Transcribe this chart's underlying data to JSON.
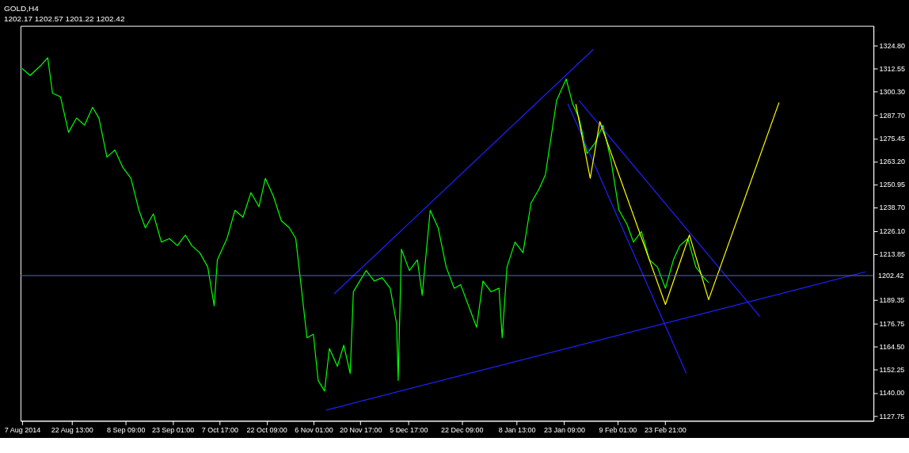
{
  "chart_data": {
    "type": "line",
    "title": "GOLD,H4",
    "subtitle": "1202.17 1202.57 1201.22 1202.42",
    "xlim": [
      "2014-08-06T12:00",
      "2015-04-30"
    ],
    "ylim": [
      1125.1,
      1335.4
    ],
    "xticks": [
      {
        "value": "2014-08-07",
        "label": "7 Aug 2014"
      },
      {
        "value": "2014-08-22T13:00",
        "label": "22 Aug 13:00"
      },
      {
        "value": "2014-09-08T09:00",
        "label": "8 Sep 09:00"
      },
      {
        "value": "2014-09-23T01:00",
        "label": "23 Sep 01:00"
      },
      {
        "value": "2014-10-07T17:00",
        "label": "7 Oct 17:00"
      },
      {
        "value": "2014-10-22T09:00",
        "label": "22 Oct 09:00"
      },
      {
        "value": "2014-11-06T01:00",
        "label": "6 Nov 01:00"
      },
      {
        "value": "2014-11-20T17:00",
        "label": "20 Nov 17:00"
      },
      {
        "value": "2014-12-05T17:00",
        "label": "5 Dec 17:00"
      },
      {
        "value": "2014-12-22T09:00",
        "label": "22 Dec 09:00"
      },
      {
        "value": "2015-01-08T13:00",
        "label": "8 Jan 13:00"
      },
      {
        "value": "2015-01-23T09:00",
        "label": "23 Jan 09:00"
      },
      {
        "value": "2015-02-09T01:00",
        "label": "9 Feb 01:00"
      },
      {
        "value": "2015-02-23T21:00",
        "label": "23 Feb 21:00"
      }
    ],
    "yticks": [
      {
        "value": 1324.8,
        "label": "1324.80"
      },
      {
        "value": 1312.55,
        "label": "1312.55"
      },
      {
        "value": 1300.3,
        "label": "1300.30"
      },
      {
        "value": 1287.7,
        "label": "1287.70"
      },
      {
        "value": 1275.45,
        "label": "1275.45"
      },
      {
        "value": 1263.2,
        "label": "1263.20"
      },
      {
        "value": 1250.95,
        "label": "1250.95"
      },
      {
        "value": 1238.7,
        "label": "1238.70"
      },
      {
        "value": 1226.1,
        "label": "1226.10"
      },
      {
        "value": 1213.85,
        "label": "1213.85"
      },
      {
        "value": 1189.35,
        "label": "1189.35"
      },
      {
        "value": 1176.75,
        "label": "1176.75"
      },
      {
        "value": 1164.5,
        "label": "1164.50"
      },
      {
        "value": 1152.25,
        "label": "1152.25"
      },
      {
        "value": 1140.0,
        "label": "1140.00"
      },
      {
        "value": 1127.75,
        "label": "1127.75"
      }
    ],
    "grid": false,
    "marker": "none",
    "line_style": "solid",
    "ref_lines": [
      {
        "axis": "y",
        "value": 1202.42,
        "label": "1202.42",
        "color": "#4a6cd4"
      }
    ],
    "series": [
      {
        "color": "#00ff00",
        "x": [
          "2014-08-07T00:00",
          "2014-08-09T12:00",
          "2014-08-13T00:00",
          "2014-08-15T00:00",
          "2014-08-16T12:00",
          "2014-08-19T00:00",
          "2014-08-21T12:00",
          "2014-08-24T00:00",
          "2014-08-26T12:00",
          "2014-08-29T00:00",
          "2014-08-31T00:00",
          "2014-09-02T12:00",
          "2014-09-05T00:00",
          "2014-09-07T12:00",
          "2014-09-10T00:00",
          "2014-09-12T12:00",
          "2014-09-14T12:00",
          "2014-09-17T00:00",
          "2014-09-19T12:00",
          "2014-09-22T00:00",
          "2014-09-24T12:00",
          "2014-09-27T00:00",
          "2014-09-29T00:00",
          "2014-10-01T12:00",
          "2014-10-04T00:00",
          "2014-10-06T00:00",
          "2014-10-07T00:00",
          "2014-10-10T00:00",
          "2014-10-12T12:00",
          "2014-10-15T00:00",
          "2014-10-17T12:00",
          "2014-10-20T00:00",
          "2014-10-22T00:00",
          "2014-10-24T12:00",
          "2014-10-27T00:00",
          "2014-10-29T12:00",
          "2014-10-31T12:00",
          "2014-11-02T00:00",
          "2014-11-04T00:00",
          "2014-11-06T00:00",
          "2014-11-07T12:00",
          "2014-11-09T12:00",
          "2014-11-11T00:00",
          "2014-11-13T12:00",
          "2014-11-15T12:00",
          "2014-11-17T12:00",
          "2014-11-18T12:00",
          "2014-11-20T12:00",
          "2014-11-22T12:00",
          "2014-11-25T00:00",
          "2014-11-27T12:00",
          "2014-11-30T00:00",
          "2014-12-02T00:00",
          "2014-12-02T12:00",
          "2014-12-03T12:00",
          "2014-12-06T00:00",
          "2014-12-08T12:00",
          "2014-12-10T00:00",
          "2014-12-12T12:00",
          "2014-12-15T00:00",
          "2014-12-17T12:00",
          "2014-12-20T00:00",
          "2014-12-22T00:00",
          "2014-12-24T12:00",
          "2014-12-27T00:00",
          "2014-12-29T00:00",
          "2014-12-31T12:00",
          "2015-01-03T00:00",
          "2015-01-04T00:00",
          "2015-01-05T12:00",
          "2015-01-08T00:00",
          "2015-01-10T12:00",
          "2015-01-13T00:00",
          "2015-01-15T12:00",
          "2015-01-17T12:00",
          "2015-01-19T12:00",
          "2015-01-21T00:00",
          "2015-01-22T12:00",
          "2015-01-24T00:00",
          "2015-01-26T00:00",
          "2015-01-28T00:00",
          "2015-01-30T12:00",
          "2015-02-02T00:00",
          "2015-02-04T12:00",
          "2015-02-07T00:00",
          "2015-02-09T12:00",
          "2015-02-12T00:00",
          "2015-02-14T00:00",
          "2015-02-16T12:00",
          "2015-02-19T00:00",
          "2015-02-21T12:00",
          "2015-02-24T00:00",
          "2015-02-26T12:00",
          "2015-02-28T12:00",
          "2015-03-03T00:00",
          "2015-03-05T12:00",
          "2015-03-08T00:00",
          "2015-03-09T12:00"
        ],
        "values": [
          1312.7,
          1309.0,
          1314.6,
          1318.4,
          1299.5,
          1297.6,
          1278.7,
          1286.3,
          1282.5,
          1292.0,
          1286.3,
          1265.5,
          1269.3,
          1259.9,
          1254.2,
          1237.2,
          1227.8,
          1235.3,
          1220.3,
          1222.1,
          1218.4,
          1224.0,
          1218.4,
          1214.6,
          1207.0,
          1186.3,
          1210.8,
          1222.1,
          1237.2,
          1233.5,
          1246.6,
          1239.1,
          1254.2,
          1244.7,
          1231.6,
          1227.8,
          1222.1,
          1199.5,
          1169.3,
          1171.2,
          1146.6,
          1140.9,
          1163.6,
          1154.1,
          1165.4,
          1150.3,
          1193.8,
          1199.5,
          1205.1,
          1199.5,
          1201.3,
          1195.7,
          1176.8,
          1146.6,
          1216.5,
          1205.1,
          1210.8,
          1191.9,
          1237.2,
          1227.8,
          1207.0,
          1195.7,
          1197.6,
          1186.3,
          1174.9,
          1199.5,
          1193.8,
          1195.7,
          1169.3,
          1207.0,
          1220.3,
          1214.6,
          1241.0,
          1248.5,
          1256.1,
          1278.7,
          1295.7,
          1301.4,
          1307.1,
          1293.9,
          1286.3,
          1267.4,
          1273.0,
          1282.5,
          1263.6,
          1237.2,
          1229.7,
          1220.3,
          1225.9,
          1210.8,
          1207.0,
          1195.7,
          1210.8,
          1218.4,
          1222.1,
          1207.0,
          1201.3,
          1198.7
        ]
      },
      {
        "color": "#2020ff",
        "x": [
          "2014-11-12T12:00",
          "2015-02-01T12:00"
        ],
        "values": [
          1192.7,
          1322.9
        ]
      },
      {
        "color": "#2020ff",
        "x": [
          "2014-11-10T00:00",
          "2015-04-27T12:00"
        ],
        "values": [
          1130.8,
          1204.4
        ]
      },
      {
        "color": "#2020ff",
        "x": [
          "2015-01-24T12:00",
          "2015-03-02T12:00"
        ],
        "values": [
          1293.9,
          1150.4
        ]
      },
      {
        "color": "#2020ff",
        "x": [
          "2015-01-28T00:00",
          "2015-03-25T12:00"
        ],
        "values": [
          1295.7,
          1180.6
        ]
      },
      {
        "color": "#ffff00",
        "x": [
          "2015-01-27T00:00",
          "2015-01-31T12:00",
          "2015-02-03T12:00",
          "2015-02-24T00:00",
          "2015-03-03T12:00",
          "2015-03-09T12:00",
          "2015-03-31T12:00"
        ],
        "values": [
          1293.8,
          1254.2,
          1284.4,
          1187.0,
          1224.0,
          1189.6,
          1294.6
        ]
      }
    ]
  }
}
